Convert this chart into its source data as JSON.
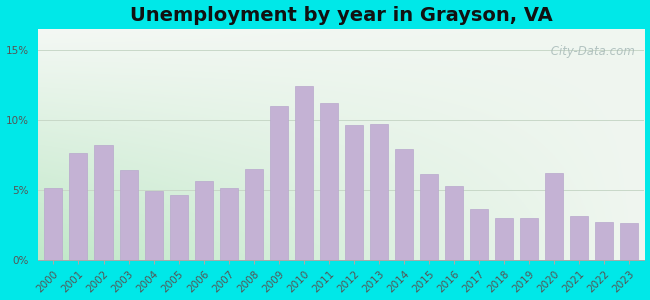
{
  "title": "Unemployment by year in Grayson, VA",
  "years": [
    2000,
    2001,
    2002,
    2003,
    2004,
    2005,
    2006,
    2007,
    2008,
    2009,
    2010,
    2011,
    2012,
    2013,
    2014,
    2015,
    2016,
    2017,
    2018,
    2019,
    2020,
    2021,
    2022,
    2023
  ],
  "values": [
    5.1,
    7.6,
    8.2,
    6.4,
    4.9,
    4.6,
    5.6,
    5.1,
    6.5,
    11.0,
    12.4,
    11.2,
    9.6,
    9.7,
    7.9,
    6.1,
    5.3,
    3.6,
    3.0,
    3.0,
    6.2,
    3.1,
    2.7,
    2.6
  ],
  "bar_color": "#c4b2d4",
  "bar_edge_color": "#b8a8cc",
  "yticks": [
    0,
    5,
    10,
    15
  ],
  "ytick_labels": [
    "0%",
    "5%",
    "10%",
    "15%"
  ],
  "ylim": [
    0,
    16.5
  ],
  "background_outer": "#00e8e8",
  "grid_color": "#c8d8c8",
  "title_fontsize": 14,
  "tick_fontsize": 7.5,
  "watermark_text": " City-Data.com",
  "watermark_color": "#a8bab8",
  "grad_left": "#b8e8c8",
  "grad_right": "#f0f6f0",
  "grad_top": "#f4f8f4",
  "grad_bottom": "#c0e8c8"
}
